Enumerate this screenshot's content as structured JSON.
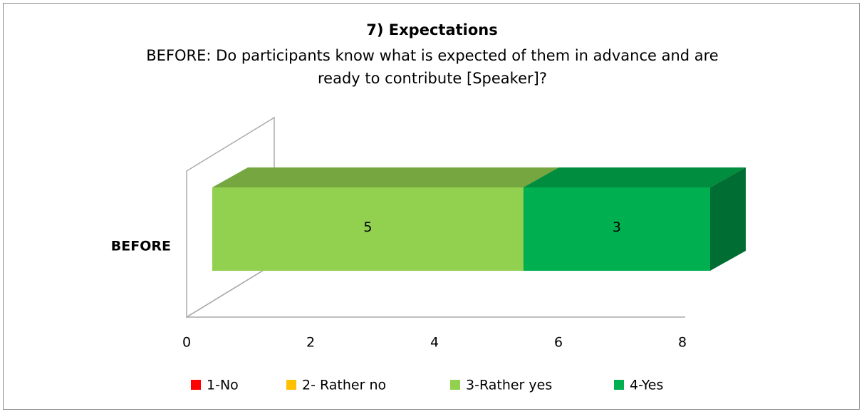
{
  "chart_data": {
    "type": "bar3d_stacked_horizontal",
    "title": "7) Expectations",
    "subtitle": "BEFORE: Do participants know what is expected of them in advance and are ready to contribute [Speaker]?",
    "categories": [
      "BEFORE"
    ],
    "series": [
      {
        "name": "1-No",
        "color": "#ff0000",
        "values": [
          0
        ]
      },
      {
        "name": "2- Rather no",
        "color": "#ffc000",
        "values": [
          0
        ]
      },
      {
        "name": "3-Rather yes",
        "color": "#92d050",
        "values": [
          5
        ]
      },
      {
        "name": "4-Yes",
        "color": "#00b050",
        "values": [
          3
        ]
      }
    ],
    "xlim": [
      0,
      8
    ],
    "xticks": [
      0,
      2,
      4,
      6,
      8
    ],
    "legend": "bottom"
  }
}
